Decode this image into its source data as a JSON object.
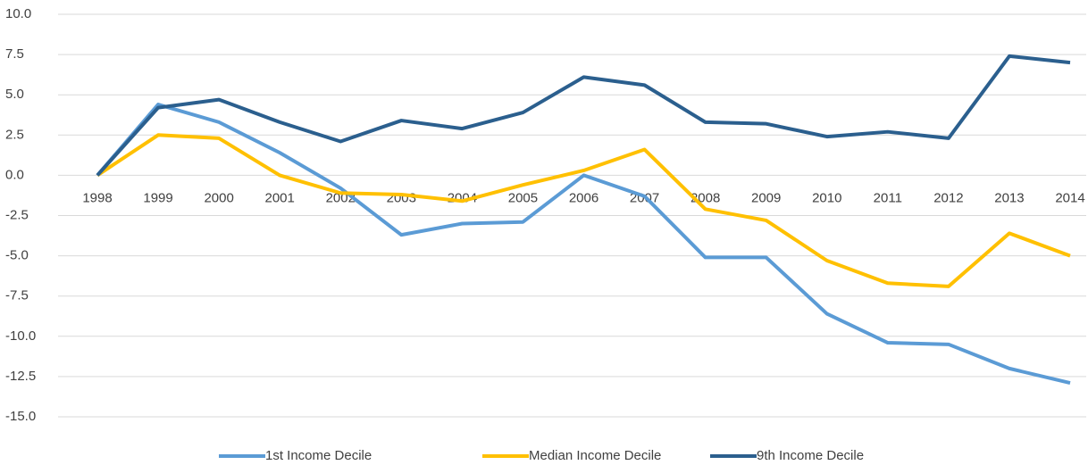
{
  "chart_data": {
    "type": "line",
    "categories": [
      "1998",
      "1999",
      "2000",
      "2001",
      "2002",
      "2003",
      "2004",
      "2005",
      "2006",
      "2007",
      "2008",
      "2009",
      "2010",
      "2011",
      "2012",
      "2013",
      "2014"
    ],
    "series": [
      {
        "name": "1st Income Decile",
        "color": "#5b9bd5",
        "values": [
          0,
          4.4,
          3.3,
          1.4,
          -0.8,
          -3.7,
          -3.0,
          -2.9,
          0.0,
          -1.3,
          -5.1,
          -5.1,
          -8.6,
          -10.4,
          -10.5,
          -12.0,
          -12.9
        ]
      },
      {
        "name": "Median Income Decile",
        "color": "#ffc000",
        "values": [
          0,
          2.5,
          2.3,
          0.0,
          -1.1,
          -1.2,
          -1.6,
          -0.6,
          0.3,
          1.6,
          -2.1,
          -2.8,
          -5.3,
          -6.7,
          -6.9,
          -3.6,
          -5.0
        ]
      },
      {
        "name": "9th Income Decile",
        "color": "#2b5f8e",
        "values": [
          0,
          4.2,
          4.7,
          3.3,
          2.1,
          3.4,
          2.9,
          3.9,
          6.1,
          5.6,
          3.3,
          3.2,
          2.4,
          2.7,
          2.3,
          7.4,
          7.0
        ]
      }
    ],
    "ylim": [
      -15,
      10
    ],
    "yticks": [
      {
        "value": 10,
        "label": "10.0"
      },
      7.5,
      {
        "value": 5,
        "label": "5.0"
      },
      2.5,
      {
        "value": 0,
        "label": "0.0"
      },
      -2.5,
      {
        "value": -5,
        "label": "-5.0"
      },
      -7.5,
      {
        "value": -10,
        "label": "-10.0"
      },
      -12.5,
      {
        "value": -15,
        "label": "-15.0"
      }
    ],
    "grid": true,
    "legend": "bottom"
  }
}
